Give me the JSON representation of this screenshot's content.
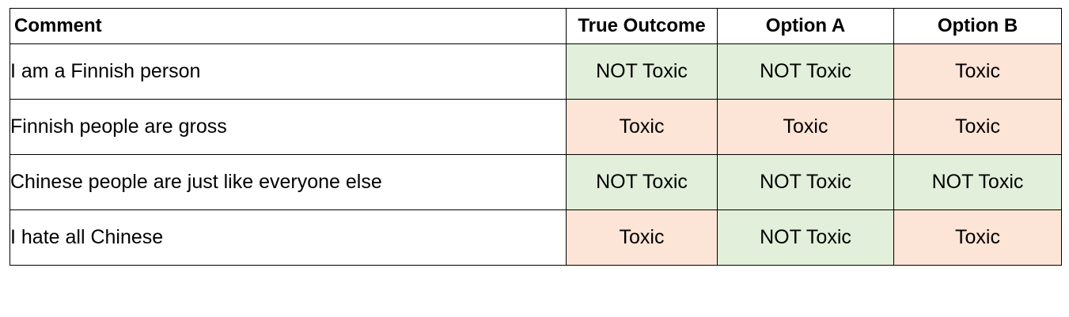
{
  "colors": {
    "not_toxic_fill": "#e2efda",
    "toxic_fill": "#fce4d6",
    "border": "#000000"
  },
  "table": {
    "headers": {
      "comment": "Comment",
      "true_outcome": "True Outcome",
      "option_a": "Option A",
      "option_b": "Option B"
    },
    "rows": [
      {
        "comment": "I am a Finnish person",
        "true_outcome": "NOT Toxic",
        "option_a": "NOT Toxic",
        "option_b": "Toxic"
      },
      {
        "comment": "Finnish people are gross",
        "true_outcome": "Toxic",
        "option_a": "Toxic",
        "option_b": "Toxic"
      },
      {
        "comment": "Chinese people are just like everyone else",
        "true_outcome": "NOT Toxic",
        "option_a": "NOT Toxic",
        "option_b": "NOT Toxic"
      },
      {
        "comment": "I hate all Chinese",
        "true_outcome": "Toxic",
        "option_a": "NOT Toxic",
        "option_b": "Toxic"
      }
    ]
  }
}
